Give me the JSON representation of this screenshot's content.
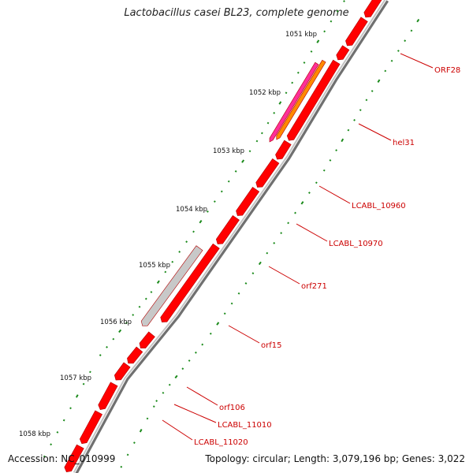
{
  "title": "Lactobacillus casei BL23, complete genome",
  "footer": {
    "accession": "Accession: NC_010999",
    "summary": "Topology: circular; Length: 3,079,196 bp; Genes: 3,022"
  },
  "colors": {
    "backbone_dark": "#707070",
    "backbone_light": "#c4c4c4",
    "gene": "#ff0000",
    "gene_highlight": "#ff7a7a",
    "hel31_orange": "#ff8a00",
    "hel31_pink": "#ff2f9a",
    "orf15_gray": "#c8c8c8",
    "label_red": "#cc0000",
    "tick_green": "#1a8a1a"
  },
  "scale_labels": [
    "1051 kbp",
    "1052 kbp",
    "1053 kbp",
    "1054 kbp",
    "1055 kbp",
    "1056 kbp",
    "1057 kbp",
    "1058 kbp"
  ],
  "gene_labels": [
    "ORF28",
    "hel31",
    "LCABL_10960",
    "LCABL_10970",
    "orf271",
    "orf15",
    "orf106",
    "LCABL_11010",
    "LCABL_11020"
  ]
}
